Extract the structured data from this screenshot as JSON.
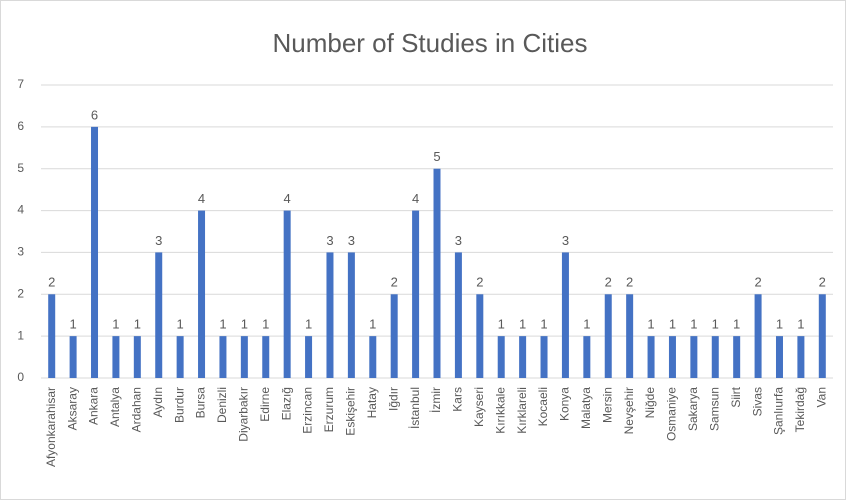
{
  "chart_data": {
    "type": "bar",
    "title": "Number of Studies in Cities",
    "categories": [
      "Afyonkarahisar",
      "Aksaray",
      "Ankara",
      "Antalya",
      "Ardahan",
      "Aydın",
      "Burdur",
      "Bursa",
      "Denizli",
      "Diyarbakır",
      "Edirne",
      "Elazığ",
      "Erzincan",
      "Erzurum",
      "Eskişehir",
      "Hatay",
      "Iğdır",
      "İstanbul",
      "İzmir",
      "Kars",
      "Kayseri",
      "Kırıkkale",
      "Kırklareli",
      "Kocaeli",
      "Konya",
      "Malatya",
      "Mersin",
      "Nevşehir",
      "Niğde",
      "Osmaniye",
      "Sakarya",
      "Samsun",
      "Siirt",
      "Sivas",
      "Şanlıurfa",
      "Tekirdağ",
      "Van"
    ],
    "values": [
      2,
      1,
      6,
      1,
      1,
      3,
      1,
      4,
      1,
      1,
      1,
      4,
      1,
      3,
      3,
      1,
      2,
      4,
      5,
      3,
      2,
      1,
      1,
      1,
      3,
      1,
      2,
      2,
      1,
      1,
      1,
      1,
      1,
      2,
      1,
      1,
      2
    ],
    "color": "#4472c4",
    "ylim": [
      0,
      7
    ],
    "yticks": [
      0,
      1,
      2,
      3,
      4,
      5,
      6,
      7
    ],
    "grid": true
  }
}
